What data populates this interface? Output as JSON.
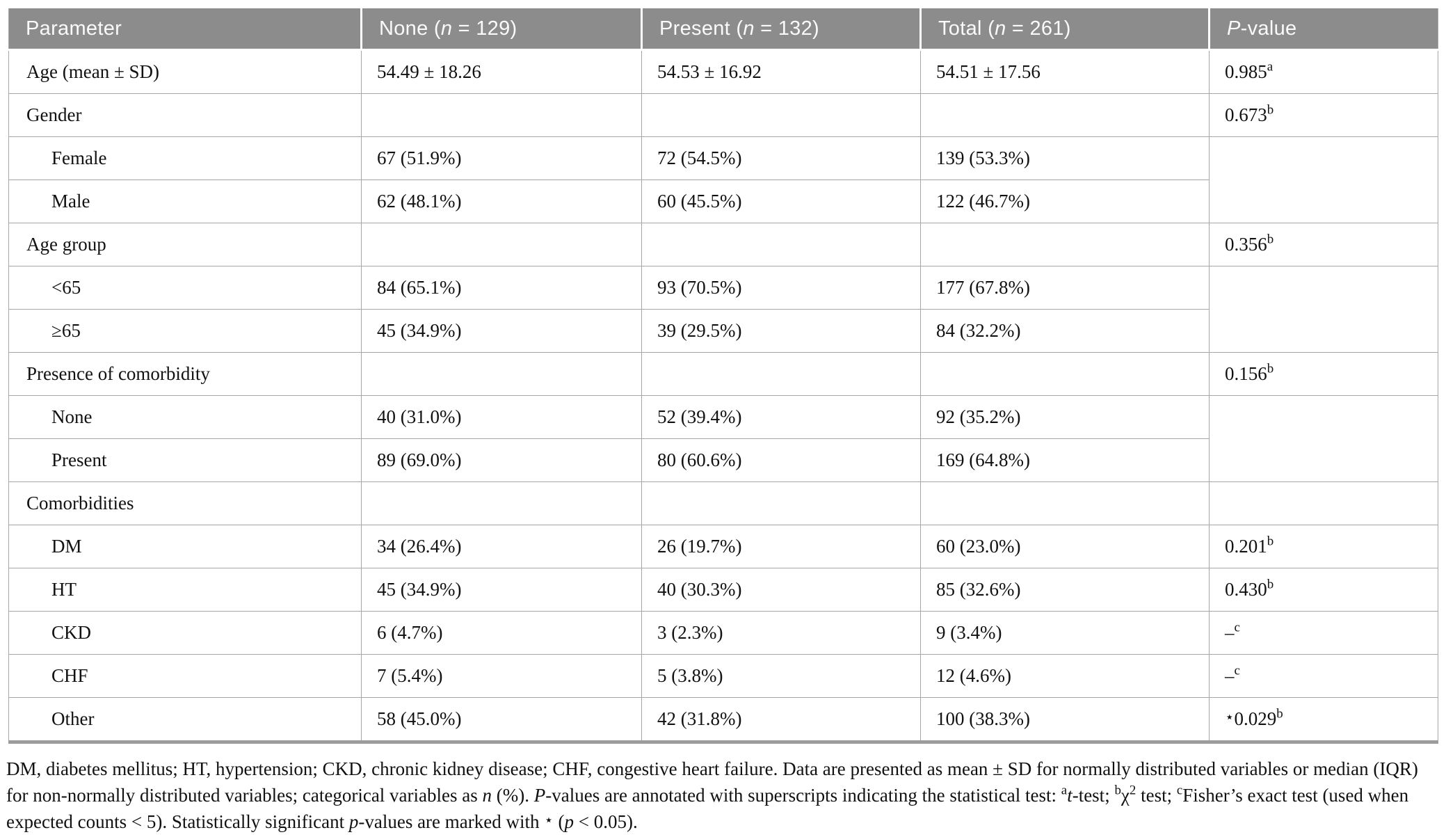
{
  "colors": {
    "header_bg": "#8c8c8c",
    "header_text": "#fafafa",
    "body_text": "#111111",
    "grid_line": "#a6a6a6",
    "bottom_rule": "#9c9c9c"
  },
  "table": {
    "columns": [
      {
        "key": "parameter",
        "label": [
          {
            "t": "Parameter"
          }
        ]
      },
      {
        "key": "none",
        "label": [
          {
            "t": "None ("
          },
          {
            "t": "n",
            "s": "i"
          },
          {
            "t": " = 129)"
          }
        ]
      },
      {
        "key": "present",
        "label": [
          {
            "t": "Present ("
          },
          {
            "t": "n",
            "s": "i"
          },
          {
            "t": " = 132)"
          }
        ]
      },
      {
        "key": "total",
        "label": [
          {
            "t": "Total ("
          },
          {
            "t": "n",
            "s": "i"
          },
          {
            "t": " = 261)"
          }
        ]
      },
      {
        "key": "p-value",
        "label": [
          {
            "t": "P",
            "s": "i"
          },
          {
            "t": "-value"
          }
        ]
      }
    ],
    "rows": [
      {
        "param": "Age (mean ± SD)",
        "indent": false,
        "cells": [
          "54.49 ± 18.26",
          "54.53 ± 16.92",
          "54.51 ± 17.56"
        ],
        "p": [
          {
            "t": "0.985"
          },
          {
            "t": "a",
            "s": "sup"
          }
        ],
        "pspan": "own"
      },
      {
        "param": "Gender",
        "indent": false,
        "cells": [
          "",
          "",
          ""
        ],
        "p": [
          {
            "t": "0.673"
          },
          {
            "t": "b",
            "s": "sup"
          }
        ],
        "pspan": "own"
      },
      {
        "param": "Female",
        "indent": true,
        "cells": [
          "67 (51.9%)",
          "72 (54.5%)",
          "139 (53.3%)"
        ],
        "pspan": "start2"
      },
      {
        "param": "Male",
        "indent": true,
        "cells": [
          "62 (48.1%)",
          "60 (45.5%)",
          "122 (46.7%)"
        ],
        "pspan": "skip"
      },
      {
        "param": "Age group",
        "indent": false,
        "cells": [
          "",
          "",
          ""
        ],
        "p": [
          {
            "t": "0.356"
          },
          {
            "t": "b",
            "s": "sup"
          }
        ],
        "pspan": "own"
      },
      {
        "param": "<65",
        "indent": true,
        "cells": [
          "84 (65.1%)",
          "93 (70.5%)",
          "177 (67.8%)"
        ],
        "pspan": "start2"
      },
      {
        "param": "≥65",
        "indent": true,
        "cells": [
          "45 (34.9%)",
          "39 (29.5%)",
          "84 (32.2%)"
        ],
        "pspan": "skip"
      },
      {
        "param": "Presence of comorbidity",
        "indent": false,
        "cells": [
          "",
          "",
          ""
        ],
        "p": [
          {
            "t": "0.156"
          },
          {
            "t": "b",
            "s": "sup"
          }
        ],
        "pspan": "own"
      },
      {
        "param": "None",
        "indent": true,
        "cells": [
          "40 (31.0%)",
          "52 (39.4%)",
          "92 (35.2%)"
        ],
        "pspan": "start2"
      },
      {
        "param": "Present",
        "indent": true,
        "cells": [
          "89 (69.0%)",
          "80 (60.6%)",
          "169 (64.8%)"
        ],
        "pspan": "skip"
      },
      {
        "param": "Comorbidities",
        "indent": false,
        "cells": [
          "",
          "",
          ""
        ],
        "p": [],
        "pspan": "own"
      },
      {
        "param": "DM",
        "indent": true,
        "cells": [
          "34 (26.4%)",
          "26 (19.7%)",
          "60 (23.0%)"
        ],
        "p": [
          {
            "t": "0.201"
          },
          {
            "t": "b",
            "s": "sup"
          }
        ],
        "pspan": "own"
      },
      {
        "param": "HT",
        "indent": true,
        "cells": [
          "45 (34.9%)",
          "40 (30.3%)",
          "85 (32.6%)"
        ],
        "p": [
          {
            "t": "0.430"
          },
          {
            "t": "b",
            "s": "sup"
          }
        ],
        "pspan": "own"
      },
      {
        "param": "CKD",
        "indent": true,
        "cells": [
          "6 (4.7%)",
          "3 (2.3%)",
          "9 (3.4%)"
        ],
        "p": [
          {
            "t": "–"
          },
          {
            "t": "c",
            "s": "sup"
          }
        ],
        "pspan": "own"
      },
      {
        "param": "CHF",
        "indent": true,
        "cells": [
          "7 (5.4%)",
          "5 (3.8%)",
          "12 (4.6%)"
        ],
        "p": [
          {
            "t": "–"
          },
          {
            "t": "c",
            "s": "sup"
          }
        ],
        "pspan": "own"
      },
      {
        "param": "Other",
        "indent": true,
        "cells": [
          "58 (45.0%)",
          "42 (31.8%)",
          "100 (38.3%)"
        ],
        "p": [
          {
            "t": "⋆",
            "s": "star"
          },
          {
            "t": "0.029"
          },
          {
            "t": "b",
            "s": "sup"
          }
        ],
        "pspan": "own"
      }
    ]
  },
  "footnote": [
    {
      "t": "DM, diabetes mellitus; HT, hypertension; CKD, chronic kidney disease; CHF, congestive heart failure. Data are presented as mean ± SD for normally distributed variables or median (IQR) for non-normally distributed variables; categorical variables as "
    },
    {
      "t": "n",
      "s": "i"
    },
    {
      "t": " (%). "
    },
    {
      "t": "P",
      "s": "i"
    },
    {
      "t": "-values are annotated with superscripts indicating the statistical test: "
    },
    {
      "t": "a",
      "s": "sup"
    },
    {
      "t": "t",
      "s": "i"
    },
    {
      "t": "-test; "
    },
    {
      "t": "b",
      "s": "sup"
    },
    {
      "t": "χ"
    },
    {
      "t": "2",
      "s": "sup"
    },
    {
      "t": " test; "
    },
    {
      "t": "c",
      "s": "sup"
    },
    {
      "t": "Fisher’s exact test (used when expected counts < 5). Statistically significant "
    },
    {
      "t": "p",
      "s": "i"
    },
    {
      "t": "-values are marked with "
    },
    {
      "t": "⋆",
      "s": "star"
    },
    {
      "t": " ("
    },
    {
      "t": "p",
      "s": "i"
    },
    {
      "t": " < 0.05)."
    }
  ]
}
